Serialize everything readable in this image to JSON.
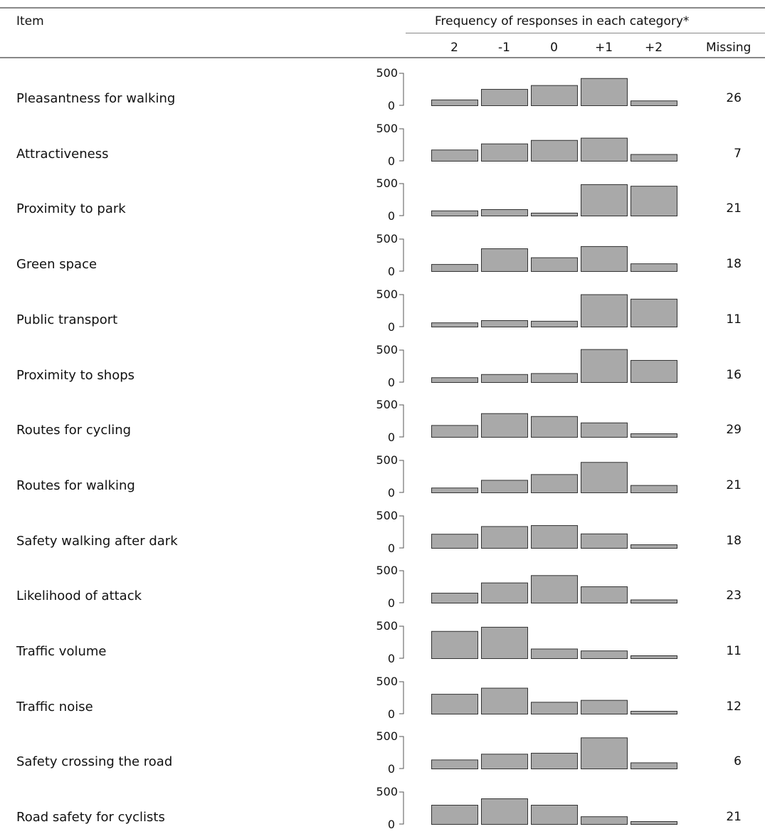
{
  "header": {
    "item_label": "Item",
    "frequency_label": "Frequency of responses in each category*",
    "categories": [
      "2",
      "-1",
      "0",
      "+1",
      "+2"
    ],
    "missing_label": "Missing"
  },
  "axis": {
    "min_label": "0",
    "max_label": "500"
  },
  "chart_data": {
    "type": "bar",
    "categories": [
      "2",
      "-1",
      "0",
      "+1",
      "+2"
    ],
    "ylim": [
      0,
      500
    ],
    "rows": [
      {
        "label": "Pleasantness for walking",
        "values": [
          90,
          255,
          315,
          425,
          75
        ],
        "missing": "26"
      },
      {
        "label": "Attractiveness",
        "values": [
          175,
          270,
          325,
          360,
          105
        ],
        "missing": "7"
      },
      {
        "label": "Proximity to park",
        "values": [
          80,
          100,
          45,
          490,
          465
        ],
        "missing": "21"
      },
      {
        "label": "Green space",
        "values": [
          110,
          355,
          215,
          390,
          120
        ],
        "missing": "18"
      },
      {
        "label": "Public transport",
        "values": [
          65,
          100,
          90,
          505,
          435
        ],
        "missing": "11"
      },
      {
        "label": "Proximity to shops",
        "values": [
          75,
          125,
          140,
          515,
          345
        ],
        "missing": "16"
      },
      {
        "label": "Routes for cycling",
        "values": [
          185,
          370,
          325,
          225,
          55
        ],
        "missing": "29"
      },
      {
        "label": "Routes for walking",
        "values": [
          75,
          195,
          285,
          475,
          115
        ],
        "missing": "21"
      },
      {
        "label": "Safety walking after dark",
        "values": [
          220,
          340,
          355,
          225,
          55
        ],
        "missing": "18"
      },
      {
        "label": "Likelihood of attack",
        "values": [
          155,
          315,
          430,
          255,
          50
        ],
        "missing": "23"
      },
      {
        "label": "Traffic volume",
        "values": [
          425,
          490,
          150,
          120,
          30
        ],
        "missing": "11"
      },
      {
        "label": "Traffic noise",
        "values": [
          310,
          405,
          185,
          215,
          35
        ],
        "missing": "12"
      },
      {
        "label": "Safety crossing the road",
        "values": [
          140,
          230,
          245,
          485,
          95
        ],
        "missing": "6"
      },
      {
        "label": "Road safety for cyclists",
        "values": [
          300,
          400,
          300,
          120,
          15
        ],
        "missing": "21"
      }
    ]
  }
}
